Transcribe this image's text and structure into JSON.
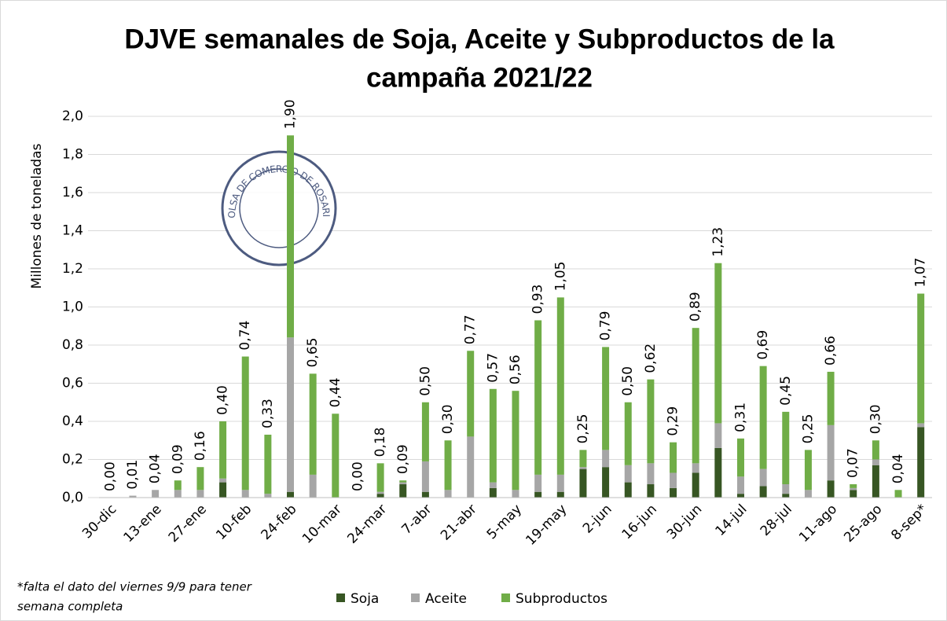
{
  "chart_data": {
    "type": "stacked_bar",
    "title": [
      "DJVE semanales de Soja, Aceite y Subproductos de la",
      "campaña 2021/22"
    ],
    "y_label": "Millones de toneladas",
    "logo_text": "BOLSA DE COMERCIO DE ROSARIO",
    "footnote": [
      "*falta el dato del viernes 9/9 para tener",
      "semana completa"
    ],
    "categories": [
      "30-dic",
      null,
      "13-ene",
      null,
      "27-ene",
      null,
      "10-feb",
      null,
      "24-feb",
      null,
      "10-mar",
      null,
      "24-mar",
      null,
      "7-abr",
      null,
      "21-abr",
      null,
      "5-may",
      null,
      "19-may",
      null,
      "2-jun",
      null,
      "16-jun",
      null,
      "30-jun",
      null,
      "14-jul",
      null,
      "28-jul",
      null,
      "11-ago",
      null,
      "25-ago",
      null,
      "8-sep*"
    ],
    "series": [
      {
        "name": "Soja",
        "color": "#375623",
        "values": [
          0,
          0,
          0,
          0,
          0,
          0.08,
          0,
          0,
          0.03,
          0,
          0,
          0,
          0.02,
          0.07,
          0.03,
          0,
          0,
          0.05,
          0,
          0.03,
          0.03,
          0.15,
          0.16,
          0.08,
          0.07,
          0.05,
          0.13,
          0.26,
          0.02,
          0.06,
          0.02,
          0,
          0.09,
          0.04,
          0.17,
          0,
          0.37
        ]
      },
      {
        "name": "Aceite",
        "color": "#a6a6a6",
        "values": [
          0,
          0.01,
          0.04,
          0.04,
          0.04,
          0.02,
          0.04,
          0.02,
          0.81,
          0.12,
          0,
          0,
          0.01,
          0.01,
          0.16,
          0.04,
          0.32,
          0.03,
          0.04,
          0.09,
          0.09,
          0.01,
          0.09,
          0.09,
          0.11,
          0.08,
          0.05,
          0.13,
          0.09,
          0.09,
          0.05,
          0.04,
          0.29,
          0.01,
          0.03,
          0,
          0.02
        ]
      },
      {
        "name": "Subproductos",
        "color": "#70ad47",
        "values": [
          0,
          0,
          0,
          0.05,
          0.12,
          0.3,
          0.7,
          0.31,
          1.06,
          0.53,
          0.44,
          0,
          0.15,
          0.01,
          0.31,
          0.26,
          0.45,
          0.49,
          0.52,
          0.81,
          0.93,
          0.09,
          0.54,
          0.33,
          0.44,
          0.16,
          0.71,
          0.84,
          0.2,
          0.54,
          0.38,
          0.21,
          0.28,
          0.02,
          0.1,
          0.04,
          0.68
        ]
      }
    ],
    "totals": [
      0,
      0.01,
      0.04,
      0.09,
      0.16,
      0.4,
      0.74,
      0.33,
      1.9,
      0.65,
      0.44,
      0,
      0.18,
      0.09,
      0.5,
      0.3,
      0.77,
      0.57,
      0.56,
      0.93,
      1.05,
      0.25,
      0.79,
      0.5,
      0.62,
      0.29,
      0.89,
      1.23,
      0.31,
      0.69,
      0.45,
      0.25,
      0.66,
      0.07,
      0.3,
      0.04,
      1.07
    ],
    "total_labels": [
      "0,00",
      "0,01",
      "0,04",
      "0,09",
      "0,16",
      "0,40",
      "0,74",
      "0,33",
      "1,90",
      "0,65",
      "0,44",
      "0,00",
      "0,18",
      "0,09",
      "0,50",
      "0,30",
      "0,77",
      "0,57",
      "0,56",
      "0,93",
      "1,05",
      "0,25",
      "0,79",
      "0,50",
      "0,62",
      "0,29",
      "0,89",
      "1,23",
      "0,31",
      "0,69",
      "0,45",
      "0,25",
      "0,66",
      "0,07",
      "0,30",
      "0,04",
      "1,07"
    ],
    "ylim": [
      0,
      2
    ],
    "yticks": [
      {
        "value": 0,
        "label": "0,0"
      },
      {
        "value": 0.2,
        "label": "0,2"
      },
      {
        "value": 0.4,
        "label": "0,4"
      },
      {
        "value": 0.6,
        "label": "0,6"
      },
      {
        "value": 0.8,
        "label": "0,8"
      },
      {
        "value": 1.0,
        "label": "1,0"
      },
      {
        "value": 1.2,
        "label": "1,2"
      },
      {
        "value": 1.4,
        "label": "1,4"
      },
      {
        "value": 1.6,
        "label": "1,6"
      },
      {
        "value": 1.8,
        "label": "1,8"
      },
      {
        "value": 2.0,
        "label": "2,0"
      }
    ],
    "grid": true,
    "legend": "bottom"
  }
}
